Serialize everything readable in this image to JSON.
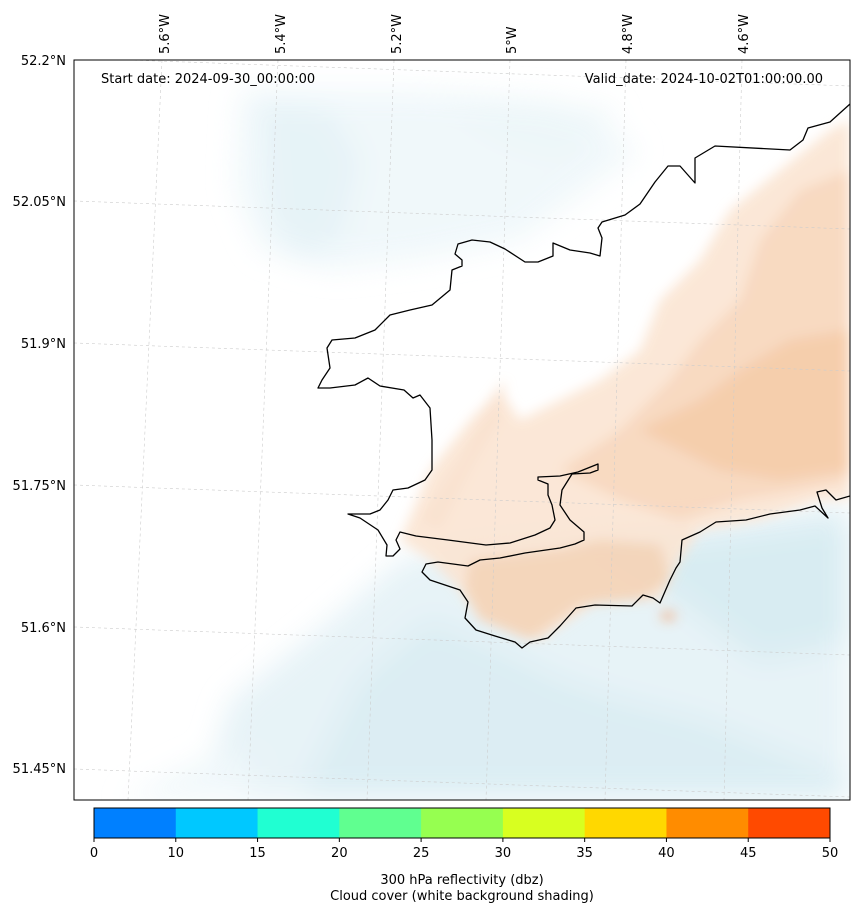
{
  "header": {
    "start_date": "Start date: 2024-09-30_00:00:00",
    "valid_date": "Valid_date: 2024-10-02T01:00:00.00"
  },
  "axes": {
    "lon_labels": [
      "5.6°W",
      "5.4°W",
      "5.2°W",
      "5°W",
      "4.8°W",
      "4.6°W"
    ],
    "lat_labels": [
      "52.2°N",
      "52.05°N",
      "51.9°N",
      "51.75°N",
      "51.6°N",
      "51.45°N"
    ]
  },
  "colorbar": {
    "ticks": [
      "0",
      "10",
      "15",
      "20",
      "25",
      "30",
      "35",
      "40",
      "45",
      "50"
    ],
    "colors": [
      "#0080ff",
      "#00c8ff",
      "#20ffd2",
      "#60ff90",
      "#96ff50",
      "#d8ff20",
      "#ffd800",
      "#ff8c00",
      "#ff4a00"
    ],
    "label_line1": "300 hPa reflectivity (dbz)",
    "label_line2": "Cloud cover (white background shading)"
  },
  "palette": {
    "cloud_blue": "#d8edf3",
    "cloud_orange": "#f6cba8",
    "coast": "#000000",
    "grid": "#cccccc"
  }
}
